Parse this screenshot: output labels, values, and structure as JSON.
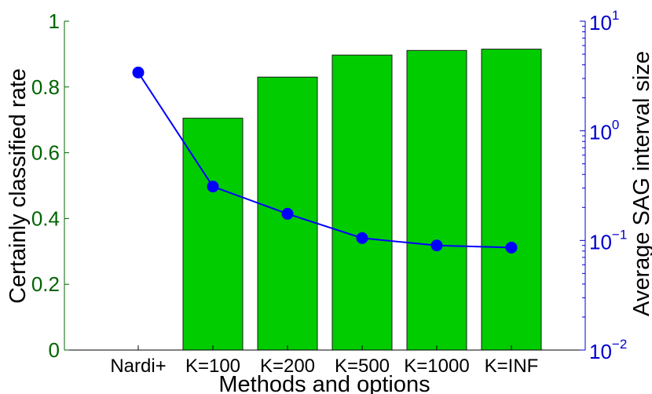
{
  "chart_data": {
    "type": "bar+line",
    "categories": [
      "Nardi+",
      "K=100",
      "K=200",
      "K=500",
      "K=1000",
      "K=INF"
    ],
    "bars": {
      "name": "",
      "values": [
        null,
        0.705,
        0.83,
        0.897,
        0.911,
        0.915
      ],
      "color": "#00cc00"
    },
    "line": {
      "name": "",
      "values": [
        3.4,
        0.31,
        0.175,
        0.105,
        0.09,
        0.086
      ],
      "color": "#0000ff",
      "scale": "log"
    },
    "xlabel": "Methods and options",
    "ylabel_left": "Certainly classified rate",
    "ylabel_right": "Average SAG interval size",
    "ylim_left": [
      0,
      1
    ],
    "ylim_right": [
      0.01,
      10
    ],
    "yticks_left": [
      "0",
      "0.2",
      "0.4",
      "0.6",
      "0.8",
      "1"
    ],
    "yticks_right": [
      {
        "base": "10",
        "exp": "−2",
        "value": 0.01
      },
      {
        "base": "10",
        "exp": "−1",
        "value": 0.1
      },
      {
        "base": "10",
        "exp": "0",
        "value": 1
      },
      {
        "base": "10",
        "exp": "1",
        "value": 10
      }
    ],
    "left_axis_color": "#006400",
    "right_axis_color": "#0000cc",
    "grid": false
  }
}
